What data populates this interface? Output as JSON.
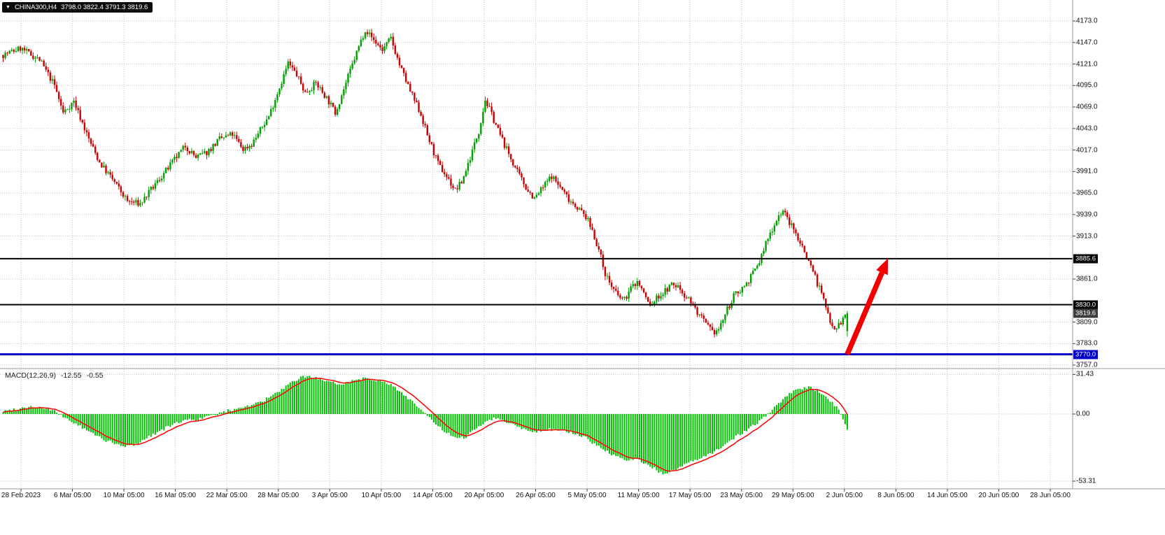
{
  "title_bar": {
    "symbol": "CHINA300,H4",
    "ohlc": "3798.0 3822.4 3791.3 3819.6"
  },
  "chart_data": {
    "type": "candlestick",
    "title": "CHINA300,H4",
    "symbol": "CHINA300",
    "timeframe": "H4",
    "last_candle": {
      "open": 3798.0,
      "high": 3822.4,
      "low": 3791.3,
      "close": 3819.6
    },
    "candle_count": 395,
    "price_axis": {
      "ticks": [
        4173.0,
        4147.0,
        4121.0,
        4095.0,
        4069.0,
        4043.0,
        4017.0,
        3991.0,
        3965.0,
        3939.0,
        3913.0,
        3861.0,
        3809.0,
        3783.0,
        3757.0
      ],
      "step": 26.0
    },
    "labeled_levels": [
      {
        "label": "3885.6",
        "price": 3885.6,
        "color": "#000000",
        "line": true,
        "line_width": 2,
        "role": "resistance"
      },
      {
        "label": "3830.0",
        "price": 3830.0,
        "color": "#000000",
        "line": true,
        "line_width": 2,
        "role": "resistance"
      },
      {
        "label": "3819.6",
        "price": 3819.6,
        "color": "#3d3d3d",
        "line": false,
        "line_width": 0,
        "role": "current-price"
      },
      {
        "label": "3770.0",
        "price": 3770.0,
        "color": "#0000c8",
        "line": true,
        "line_width": 3,
        "role": "support"
      }
    ],
    "time_labels": [
      "28 Feb 2023",
      "6 Mar 05:00",
      "10 Mar 05:00",
      "16 Mar 05:00",
      "22 Mar 05:00",
      "28 Mar 05:00",
      "3 Apr 05:00",
      "10 Apr 05:00",
      "14 Apr 05:00",
      "20 Apr 05:00",
      "26 Apr 05:00",
      "5 May 05:00",
      "11 May 05:00",
      "17 May 05:00",
      "23 May 05:00",
      "29 May 05:00",
      "2 Jun 05:00",
      "8 Jun 05:00",
      "14 Jun 05:00",
      "20 Jun 05:00",
      "28 Jun 05:00"
    ],
    "price_path": [
      [
        0,
        4132
      ],
      [
        8,
        4140
      ],
      [
        17,
        4126
      ],
      [
        24,
        4095
      ],
      [
        28,
        4062
      ],
      [
        33,
        4076
      ],
      [
        40,
        4030
      ],
      [
        45,
        4002
      ],
      [
        52,
        3978
      ],
      [
        58,
        3955
      ],
      [
        64,
        3952
      ],
      [
        70,
        3972
      ],
      [
        76,
        3992
      ],
      [
        85,
        4022
      ],
      [
        90,
        4008
      ],
      [
        95,
        4014
      ],
      [
        101,
        4030
      ],
      [
        107,
        4036
      ],
      [
        112,
        4018
      ],
      [
        116,
        4024
      ],
      [
        124,
        4058
      ],
      [
        130,
        4100
      ],
      [
        133,
        4122
      ],
      [
        137,
        4108
      ],
      [
        141,
        4086
      ],
      [
        146,
        4098
      ],
      [
        151,
        4080
      ],
      [
        155,
        4062
      ],
      [
        160,
        4098
      ],
      [
        165,
        4135
      ],
      [
        169,
        4163
      ],
      [
        173,
        4150
      ],
      [
        177,
        4138
      ],
      [
        181,
        4152
      ],
      [
        185,
        4120
      ],
      [
        190,
        4088
      ],
      [
        195,
        4060
      ],
      [
        198,
        4035
      ],
      [
        203,
        4000
      ],
      [
        207,
        3985
      ],
      [
        211,
        3968
      ],
      [
        214,
        3978
      ],
      [
        218,
        4008
      ],
      [
        222,
        4040
      ],
      [
        225,
        4078
      ],
      [
        228,
        4060
      ],
      [
        232,
        4035
      ],
      [
        236,
        4012
      ],
      [
        240,
        3990
      ],
      [
        244,
        3972
      ],
      [
        248,
        3958
      ],
      [
        252,
        3972
      ],
      [
        256,
        3986
      ],
      [
        260,
        3972
      ],
      [
        264,
        3958
      ],
      [
        268,
        3948
      ],
      [
        272,
        3936
      ],
      [
        275,
        3920
      ],
      [
        278,
        3896
      ],
      [
        281,
        3868
      ],
      [
        284,
        3852
      ],
      [
        287,
        3840
      ],
      [
        290,
        3836
      ],
      [
        293,
        3850
      ],
      [
        296,
        3858
      ],
      [
        299,
        3844
      ],
      [
        302,
        3828
      ],
      [
        305,
        3838
      ],
      [
        308,
        3844
      ],
      [
        312,
        3854
      ],
      [
        315,
        3852
      ],
      [
        318,
        3842
      ],
      [
        321,
        3834
      ],
      [
        324,
        3820
      ],
      [
        328,
        3806
      ],
      [
        331,
        3796
      ],
      [
        334,
        3800
      ],
      [
        338,
        3824
      ],
      [
        341,
        3840
      ],
      [
        344,
        3848
      ],
      [
        347,
        3856
      ],
      [
        350,
        3868
      ],
      [
        353,
        3882
      ],
      [
        356,
        3904
      ],
      [
        359,
        3922
      ],
      [
        362,
        3938
      ],
      [
        364,
        3944
      ],
      [
        366,
        3934
      ],
      [
        369,
        3920
      ],
      [
        372,
        3906
      ],
      [
        375,
        3888
      ],
      [
        378,
        3872
      ],
      [
        380,
        3856
      ],
      [
        382,
        3844
      ],
      [
        384,
        3826
      ],
      [
        386,
        3812
      ],
      [
        388,
        3802
      ],
      [
        390,
        3806
      ],
      [
        392,
        3812
      ],
      [
        394,
        3819.6
      ]
    ],
    "annotation": {
      "type": "arrow",
      "color": "#f20000",
      "from": {
        "index": 394,
        "price": 3770
      },
      "to": {
        "index": 413,
        "price": 3886
      }
    },
    "macd": {
      "label": "MACD(12,26,9)",
      "value": "-12.55",
      "signal_value": "-0.55",
      "axis_ticks": [
        "31.43",
        "0.00",
        "-53.31"
      ],
      "histogram_color": "#00c000",
      "signal_color": "#ff0000",
      "path": [
        [
          0,
          2
        ],
        [
          6,
          4
        ],
        [
          12,
          6
        ],
        [
          18,
          5
        ],
        [
          24,
          2
        ],
        [
          28,
          -2
        ],
        [
          34,
          -8
        ],
        [
          40,
          -14
        ],
        [
          48,
          -21
        ],
        [
          56,
          -26
        ],
        [
          62,
          -24
        ],
        [
          68,
          -18
        ],
        [
          76,
          -11
        ],
        [
          84,
          -5
        ],
        [
          92,
          -4
        ],
        [
          98,
          -1
        ],
        [
          104,
          2
        ],
        [
          110,
          5
        ],
        [
          116,
          7
        ],
        [
          122,
          11
        ],
        [
          128,
          17
        ],
        [
          134,
          24
        ],
        [
          140,
          30
        ],
        [
          146,
          29
        ],
        [
          152,
          25
        ],
        [
          158,
          24
        ],
        [
          164,
          27
        ],
        [
          170,
          29
        ],
        [
          176,
          26
        ],
        [
          181,
          23
        ],
        [
          186,
          17
        ],
        [
          191,
          10
        ],
        [
          196,
          2
        ],
        [
          201,
          -7
        ],
        [
          207,
          -15
        ],
        [
          212,
          -20
        ],
        [
          216,
          -18
        ],
        [
          221,
          -11
        ],
        [
          226,
          -5
        ],
        [
          230,
          -3
        ],
        [
          236,
          -7
        ],
        [
          242,
          -11
        ],
        [
          248,
          -14
        ],
        [
          254,
          -12
        ],
        [
          260,
          -13
        ],
        [
          266,
          -15
        ],
        [
          272,
          -19
        ],
        [
          278,
          -26
        ],
        [
          284,
          -32
        ],
        [
          290,
          -37
        ],
        [
          296,
          -36
        ],
        [
          302,
          -41
        ],
        [
          308,
          -48
        ],
        [
          314,
          -44
        ],
        [
          320,
          -39
        ],
        [
          326,
          -35
        ],
        [
          331,
          -31
        ],
        [
          336,
          -25
        ],
        [
          341,
          -19
        ],
        [
          346,
          -14
        ],
        [
          351,
          -8
        ],
        [
          356,
          -2
        ],
        [
          360,
          5
        ],
        [
          364,
          12
        ],
        [
          368,
          17
        ],
        [
          372,
          20
        ],
        [
          376,
          21
        ],
        [
          380,
          19
        ],
        [
          384,
          14
        ],
        [
          387,
          9
        ],
        [
          390,
          3
        ],
        [
          392,
          -5
        ],
        [
          394,
          -12.55
        ]
      ]
    },
    "colors": {
      "bull": "#00a000",
      "bear": "#cc0000",
      "grid": "#c4c4c4",
      "background": "#ffffff",
      "separator": "#9a9a9a",
      "axis_text": "#111111"
    }
  }
}
